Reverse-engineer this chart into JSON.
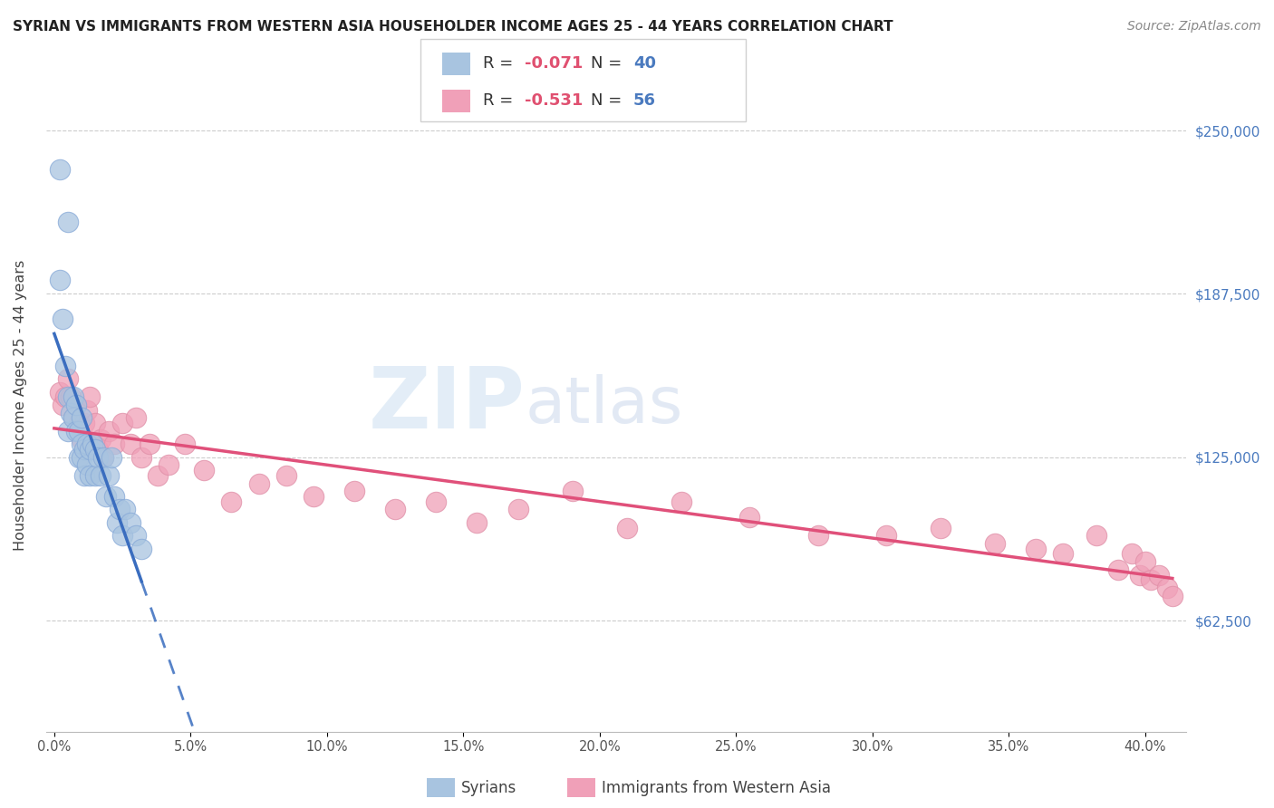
{
  "title": "SYRIAN VS IMMIGRANTS FROM WESTERN ASIA HOUSEHOLDER INCOME AGES 25 - 44 YEARS CORRELATION CHART",
  "source": "Source: ZipAtlas.com",
  "ylabel": "Householder Income Ages 25 - 44 years",
  "ytick_labels": [
    "$62,500",
    "$125,000",
    "$187,500",
    "$250,000"
  ],
  "ytick_values": [
    62500,
    125000,
    187500,
    250000
  ],
  "ylim": [
    20000,
    270000
  ],
  "xlim": [
    -0.003,
    0.415
  ],
  "blue_color": "#a8c4e0",
  "pink_color": "#f0a0b8",
  "blue_line_color": "#3a6dbf",
  "pink_line_color": "#e0507a",
  "watermark_zip": "ZIP",
  "watermark_atlas": "atlas",
  "syrians_x": [
    0.002,
    0.005,
    0.002,
    0.003,
    0.004,
    0.005,
    0.005,
    0.006,
    0.007,
    0.007,
    0.008,
    0.008,
    0.009,
    0.009,
    0.01,
    0.01,
    0.01,
    0.011,
    0.011,
    0.012,
    0.012,
    0.013,
    0.013,
    0.014,
    0.015,
    0.015,
    0.016,
    0.017,
    0.018,
    0.019,
    0.02,
    0.021,
    0.022,
    0.023,
    0.024,
    0.025,
    0.026,
    0.028,
    0.03,
    0.032
  ],
  "syrians_y": [
    235000,
    215000,
    193000,
    178000,
    160000,
    148000,
    135000,
    142000,
    148000,
    140000,
    145000,
    135000,
    135000,
    125000,
    130000,
    125000,
    140000,
    128000,
    118000,
    130000,
    122000,
    128000,
    118000,
    130000,
    128000,
    118000,
    125000,
    118000,
    125000,
    110000,
    118000,
    125000,
    110000,
    100000,
    105000,
    95000,
    105000,
    100000,
    95000,
    90000
  ],
  "western_asia_x": [
    0.002,
    0.003,
    0.004,
    0.005,
    0.006,
    0.007,
    0.008,
    0.009,
    0.01,
    0.011,
    0.012,
    0.013,
    0.014,
    0.015,
    0.016,
    0.017,
    0.018,
    0.02,
    0.022,
    0.025,
    0.028,
    0.03,
    0.032,
    0.035,
    0.038,
    0.042,
    0.048,
    0.055,
    0.065,
    0.075,
    0.085,
    0.095,
    0.11,
    0.125,
    0.14,
    0.155,
    0.17,
    0.19,
    0.21,
    0.23,
    0.255,
    0.28,
    0.305,
    0.325,
    0.345,
    0.36,
    0.37,
    0.382,
    0.39,
    0.395,
    0.398,
    0.4,
    0.402,
    0.405,
    0.408,
    0.41
  ],
  "western_asia_y": [
    150000,
    145000,
    148000,
    155000,
    148000,
    140000,
    145000,
    138000,
    132000,
    138000,
    143000,
    148000,
    130000,
    138000,
    128000,
    132000,
    125000,
    135000,
    130000,
    138000,
    130000,
    140000,
    125000,
    130000,
    118000,
    122000,
    130000,
    120000,
    108000,
    115000,
    118000,
    110000,
    112000,
    105000,
    108000,
    100000,
    105000,
    112000,
    98000,
    108000,
    102000,
    95000,
    95000,
    98000,
    92000,
    90000,
    88000,
    95000,
    82000,
    88000,
    80000,
    85000,
    78000,
    80000,
    75000,
    72000
  ]
}
